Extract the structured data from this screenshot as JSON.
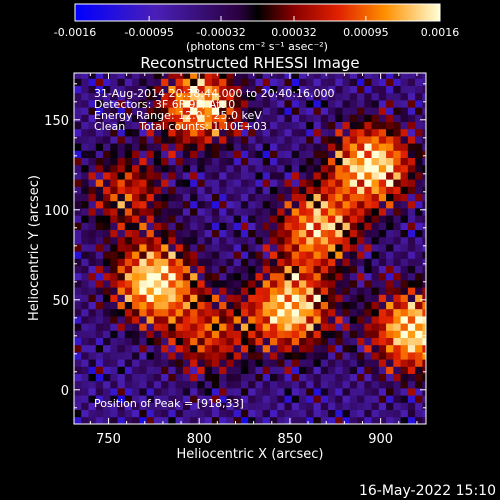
{
  "chart_data": {
    "type": "heatmap",
    "title": "Reconstructed RHESSI Image",
    "xlabel": "Heliocentric X (arcsec)",
    "ylabel": "Heliocentric Y (arcsec)",
    "xlim": [
      731,
      925
    ],
    "ylim": [
      -19,
      176
    ],
    "xticks": [
      750,
      800,
      850,
      900
    ],
    "yticks": [
      0,
      50,
      100,
      150
    ],
    "colorbar": {
      "ticks": [
        -0.0016,
        -0.00095,
        -0.00032,
        0.00032,
        0.00095,
        0.0016
      ],
      "tick_labels": [
        "-0.0016",
        "-0.00095",
        "-0.00032",
        "0.00032",
        "0.00095",
        "0.0016"
      ],
      "min": -0.0016,
      "max": 0.0016,
      "unit_label": "(photons cm⁻² s⁻¹ asec⁻²)"
    },
    "annotations": [
      "31-Aug-2014 20:38:44.000 to 20:40:16.000",
      "Detectors: 3F 6F 9F, Att 0",
      "Energy Range: 12.0 - 25.0 keV",
      "Clean    Total counts: 1.10E+03"
    ],
    "peak_label": "Position of Peak = [918,33]",
    "sources": [
      {
        "x": 775,
        "y": 60,
        "intensity": 0.0016
      },
      {
        "x": 800,
        "y": 158,
        "intensity": 0.0014
      },
      {
        "x": 850,
        "y": 45,
        "intensity": 0.0015
      },
      {
        "x": 865,
        "y": 90,
        "intensity": 0.0012
      },
      {
        "x": 895,
        "y": 125,
        "intensity": 0.0016
      },
      {
        "x": 918,
        "y": 33,
        "intensity": 0.0016
      },
      {
        "x": 760,
        "y": 110,
        "intensity": 0.0006
      },
      {
        "x": 805,
        "y": 30,
        "intensity": 0.0006
      }
    ]
  },
  "footer": {
    "timestamp": "16-May-2022 15:10"
  }
}
